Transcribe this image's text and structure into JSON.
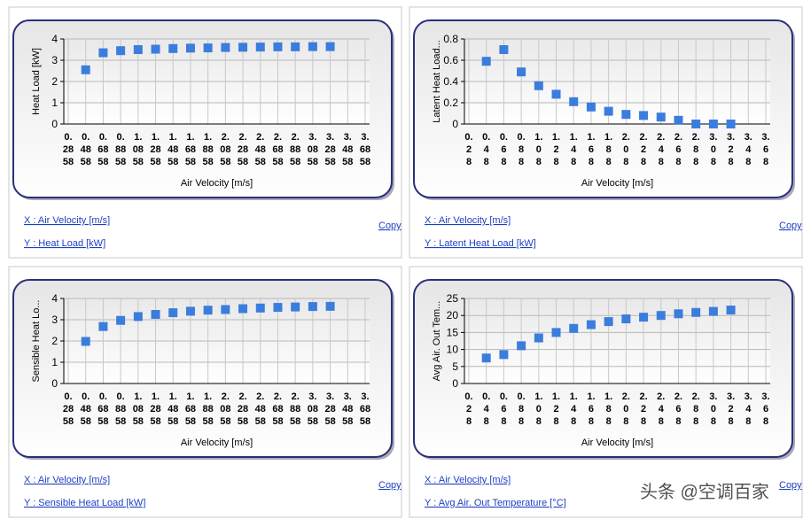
{
  "chart_data": [
    {
      "type": "scatter",
      "ylabel": "Heat Load [kW]",
      "xlabel": "Air Velocity [m/s]",
      "categories": [
        "0.2858",
        "0.4858",
        "0.6858",
        "0.8858",
        "1.0858",
        "1.2858",
        "1.4858",
        "1.6858",
        "1.8858",
        "2.0858",
        "2.2858",
        "2.4858",
        "2.6858",
        "2.8858",
        "3.0858",
        "3.2858",
        "3.4858",
        "3.6858"
      ],
      "values": [
        null,
        2.55,
        3.35,
        3.45,
        3.5,
        3.52,
        3.55,
        3.57,
        3.58,
        3.6,
        3.61,
        3.62,
        3.63,
        3.63,
        3.64,
        3.64,
        null,
        null
      ],
      "color": "#3b7ddd",
      "ylim": [
        0,
        4
      ],
      "yticks": [
        0,
        1,
        2,
        3,
        4
      ],
      "grid": true
    },
    {
      "type": "scatter",
      "ylabel": "Latent Heat Load...",
      "xlabel": "Air Velocity [m/s]",
      "categories": [
        "0.28",
        "0.48",
        "0.68",
        "0.88",
        "1.08",
        "1.28",
        "1.48",
        "1.68",
        "1.88",
        "2.08",
        "2.28",
        "2.48",
        "2.68",
        "2.88",
        "3.08",
        "3.28",
        "3.48",
        "3.68"
      ],
      "values": [
        null,
        0.59,
        0.7,
        0.49,
        0.36,
        0.28,
        0.21,
        0.16,
        0.12,
        0.09,
        0.08,
        0.065,
        0.035,
        0,
        0,
        0,
        null,
        null
      ],
      "color": "#3b7ddd",
      "ylim": [
        0,
        0.8
      ],
      "yticks": [
        0,
        0.2,
        0.4,
        0.6,
        0.8
      ],
      "grid": true
    },
    {
      "type": "scatter",
      "ylabel": "Sensible Heat Lo...",
      "xlabel": "Air Velocity [m/s]",
      "categories": [
        "0.2858",
        "0.4858",
        "0.6858",
        "0.8858",
        "1.0858",
        "1.2858",
        "1.4858",
        "1.6858",
        "1.8858",
        "2.0858",
        "2.2858",
        "2.4858",
        "2.6858",
        "2.8858",
        "3.0858",
        "3.2858",
        "3.4858",
        "3.6858"
      ],
      "values": [
        null,
        1.98,
        2.68,
        2.97,
        3.15,
        3.25,
        3.33,
        3.4,
        3.45,
        3.48,
        3.52,
        3.55,
        3.58,
        3.6,
        3.62,
        3.63,
        null,
        null
      ],
      "color": "#3b7ddd",
      "ylim": [
        0,
        4
      ],
      "yticks": [
        0,
        1,
        2,
        3,
        4
      ],
      "grid": true
    },
    {
      "type": "scatter",
      "ylabel": "Avg Air. Out Tem...",
      "xlabel": "Air Velocity [m/s]",
      "categories": [
        "0.28",
        "0.48",
        "0.68",
        "0.88",
        "1.08",
        "1.28",
        "1.48",
        "1.68",
        "1.88",
        "2.08",
        "2.28",
        "2.48",
        "2.68",
        "2.88",
        "3.08",
        "3.28",
        "3.48",
        "3.68"
      ],
      "values": [
        null,
        7.5,
        8.5,
        11.1,
        13.4,
        15,
        16.2,
        17.3,
        18.2,
        19,
        19.5,
        20,
        20.5,
        20.9,
        21.2,
        21.6,
        null,
        null
      ],
      "color": "#3b7ddd",
      "ylim": [
        0,
        25
      ],
      "yticks": [
        0,
        5,
        10,
        15,
        20,
        25
      ],
      "grid": true
    }
  ],
  "links": [
    {
      "x": "X : Air Velocity [m/s]",
      "y": "Y : Heat Load [kW]",
      "copy": "Copy"
    },
    {
      "x": "X : Air Velocity [m/s]",
      "y": "Y : Latent Heat Load [kW]",
      "copy": "Copy"
    },
    {
      "x": "X : Air Velocity [m/s]",
      "y": "Y : Sensible Heat Load [kW]",
      "copy": "Copy"
    },
    {
      "x": "X : Air Velocity [m/s]",
      "y": "Y : Avg Air. Out Temperature [°C]",
      "copy": "Copy"
    }
  ],
  "watermark": "头条 @空调百家"
}
